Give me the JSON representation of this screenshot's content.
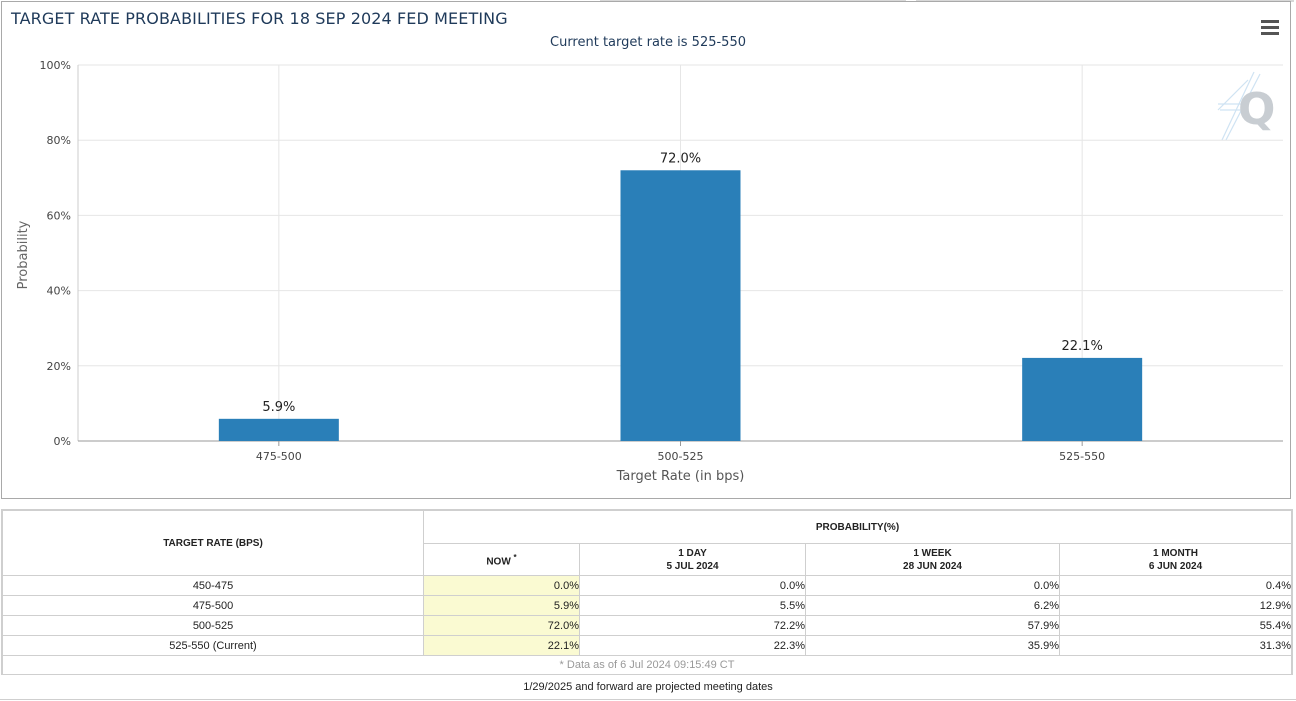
{
  "chart": {
    "title": "TARGET RATE PROBABILITIES FOR 18 SEP 2024 FED MEETING",
    "subtitle": "Current target rate is 525-550"
  },
  "chart_data": {
    "type": "bar",
    "title": "TARGET RATE PROBABILITIES FOR 18 SEP 2024 FED MEETING",
    "subtitle": "Current target rate is 525-550",
    "categories": [
      "475-500",
      "500-525",
      "525-550"
    ],
    "values": [
      5.9,
      72.0,
      22.1
    ],
    "data_labels": [
      "5.9%",
      "72.0%",
      "22.1%"
    ],
    "xlabel": "Target Rate (in bps)",
    "ylabel": "Probability",
    "ylim": [
      0,
      100
    ],
    "yticks": [
      0,
      20,
      40,
      60,
      80,
      100
    ],
    "ytick_labels": [
      "0%",
      "20%",
      "40%",
      "60%",
      "80%",
      "100%"
    ],
    "grid": true,
    "bar_color": "#2a7fb8"
  },
  "menu": {
    "icon": "hamburger-menu-icon"
  },
  "watermark": {
    "icon": "quikstrike-q-logo",
    "letter": "Q"
  },
  "table": {
    "target_header": "TARGET RATE (BPS)",
    "probability_header": "PROBABILITY(%)",
    "columns": [
      {
        "line1": "NOW",
        "line2": "",
        "marker": "*"
      },
      {
        "line1": "1 DAY",
        "line2": "5 JUL 2024",
        "marker": ""
      },
      {
        "line1": "1 WEEK",
        "line2": "28 JUN 2024",
        "marker": ""
      },
      {
        "line1": "1 MONTH",
        "line2": "6 JUN 2024",
        "marker": ""
      }
    ],
    "rows": [
      {
        "rate": "450-475",
        "values": [
          "0.0%",
          "0.0%",
          "0.0%",
          "0.4%"
        ]
      },
      {
        "rate": "475-500",
        "values": [
          "5.9%",
          "5.5%",
          "6.2%",
          "12.9%"
        ]
      },
      {
        "rate": "500-525",
        "values": [
          "72.0%",
          "72.2%",
          "57.9%",
          "55.4%"
        ]
      },
      {
        "rate": "525-550 (Current)",
        "values": [
          "22.1%",
          "22.3%",
          "35.9%",
          "31.3%"
        ]
      }
    ],
    "footnote": "* Data as of 6 Jul 2024 09:15:49 CT"
  },
  "bottom_note": "1/29/2025 and forward are projected meeting dates",
  "colors": {
    "bar": "#2a7fb8",
    "now_column_bg": "#fafad2",
    "title": "#1f3a5a"
  }
}
